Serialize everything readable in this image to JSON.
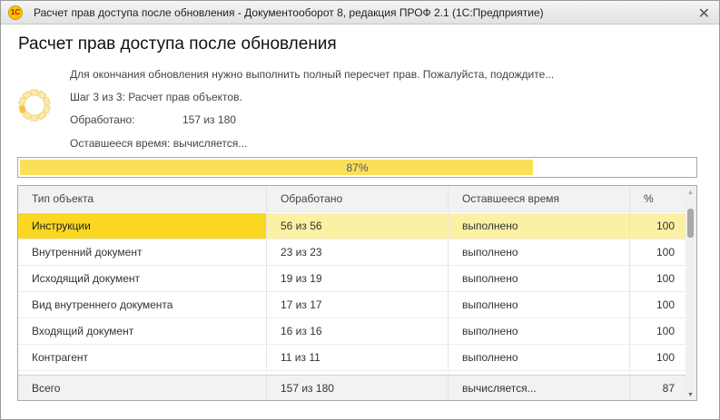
{
  "window": {
    "title": "Расчет прав доступа после обновления - Документооборот 8, редакция ПРОФ 2.1  (1С:Предприятие)",
    "logo": "1С"
  },
  "heading": "Расчет прав доступа после обновления",
  "info": {
    "message": "Для окончания обновления нужно выполнить полный пересчет прав. Пожалуйста, подождите...",
    "step": "Шаг 3 из 3: Расчет прав объектов.",
    "processed_label": "Обработано:",
    "processed_value": "157 из 180",
    "remaining": "Оставшееся время: вычисляется..."
  },
  "progress": {
    "percent": 87,
    "label": "87%"
  },
  "table": {
    "headers": [
      "Тип объекта",
      "Обработано",
      "Оставшееся время",
      "%"
    ],
    "rows": [
      [
        "Инструкции",
        "56 из 56",
        "выполнено",
        "100"
      ],
      [
        "Внутренний документ",
        "23 из 23",
        "выполнено",
        "100"
      ],
      [
        "Исходящий документ",
        "19 из 19",
        "выполнено",
        "100"
      ],
      [
        "Вид внутреннего документа",
        "17 из 17",
        "выполнено",
        "100"
      ],
      [
        "Входящий документ",
        "16 из 16",
        "выполнено",
        "100"
      ],
      [
        "Контрагент",
        "11 из 11",
        "выполнено",
        "100"
      ]
    ],
    "footer": [
      "Всего",
      "157 из 180",
      "вычисляется...",
      "87"
    ]
  },
  "colors": {
    "accent": "#fad723",
    "progress": "#fae05a",
    "selected_row": "#fcf0a4"
  }
}
